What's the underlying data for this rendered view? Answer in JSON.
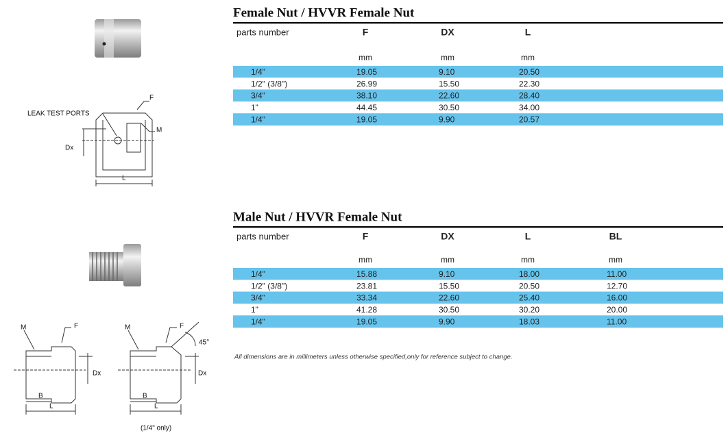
{
  "sections": [
    {
      "title": "Female Nut / HVVR Female Nut",
      "columns": [
        "parts number",
        "F",
        "DX",
        "L"
      ],
      "units": [
        "mm",
        "mm",
        "mm"
      ],
      "rows": [
        [
          "1/4\"",
          "19.05",
          "9.10",
          "20.50"
        ],
        [
          "1/2\" (3/8\")",
          "26.99",
          "15.50",
          "22.30"
        ],
        [
          "3/4\"",
          "38.10",
          "22.60",
          "28.40"
        ],
        [
          "1\"",
          "44.45",
          "30.50",
          "34.00"
        ],
        [
          "1/4\"",
          "19.05",
          "9.90",
          "20.57"
        ]
      ]
    },
    {
      "title": "Male Nut / HVVR Female Nut",
      "columns": [
        "parts number",
        "F",
        "DX",
        "L",
        "BL"
      ],
      "units": [
        "mm",
        "mm",
        "mm",
        "mm"
      ],
      "rows": [
        [
          "1/4\"",
          "15.88",
          "9.10",
          "18.00",
          "11.00"
        ],
        [
          "1/2\" (3/8\")",
          "23.81",
          "15.50",
          "20.50",
          "12.70"
        ],
        [
          "3/4\"",
          "33.34",
          "22.60",
          "25.40",
          "16.00"
        ],
        [
          "1\"",
          "41.28",
          "30.50",
          "30.20",
          "20.00"
        ],
        [
          "1/4\"",
          "19.05",
          "9.90",
          "18.03",
          "11.00"
        ]
      ]
    }
  ],
  "footnote": "All dimensions are in millimeters unless otherwise specified,only for reference subject to change.",
  "diagram_1": {
    "leak_test_ports": "LEAK TEST PORTS",
    "f": "F",
    "m": "M",
    "dx": "Dx",
    "l": "L"
  },
  "diagram_2": {
    "m": "M",
    "f": "F",
    "dx": "Dx",
    "b": "B",
    "l": "L"
  },
  "diagram_3": {
    "m": "M",
    "f": "F",
    "angle": "45°",
    "dx": "Dx",
    "b": "B",
    "l": "L",
    "note": "(1/4\" only)"
  }
}
